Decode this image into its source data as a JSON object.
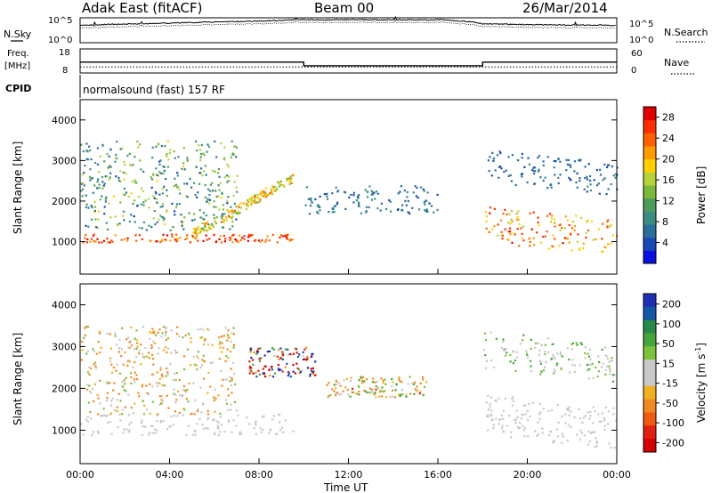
{
  "header": {
    "station": "Adak East (fitACF)",
    "beam": "Beam 00",
    "date": "26/Mar/2014"
  },
  "top_panels": {
    "nsky_label": "N.Sky",
    "nsearch_label": "N.Search",
    "noise_ticks": [
      "10^5",
      "10^0"
    ],
    "freq_label_1": "Freq.",
    "freq_label_2": "[MHz]",
    "freq_ticks": [
      "18",
      "8"
    ],
    "nave_label": "Nave",
    "nave_ticks": [
      "60",
      "0"
    ],
    "cpid_label": "CPID",
    "cpid_text": "normalsound (fast) 157 RF"
  },
  "colors": {
    "power_scale": [
      "#0a10e0",
      "#1848b4",
      "#2a6e9a",
      "#3c8c84",
      "#4c9c5c",
      "#7cb83c",
      "#b6d23a",
      "#ffd000",
      "#ff9a00",
      "#ff6000",
      "#ff3000",
      "#e00000"
    ],
    "velocity_scale": [
      "#1f2fb4",
      "#1656a8",
      "#278a4a",
      "#46a63c",
      "#7cc23c",
      "#c8c8c8",
      "#c8c8c8",
      "#f0b020",
      "#f08a20",
      "#f05a10",
      "#e02010",
      "#d40000"
    ]
  },
  "chart_data": [
    {
      "type": "line",
      "title": "N.Sky / N.Search",
      "xlabel": "",
      "ylabel": "N.Sky",
      "ylim": [
        "10^0",
        "10^5"
      ],
      "y_scale": "log",
      "series": [
        {
          "name": "N.Sky",
          "x": [
            "00:00",
            "04:00",
            "08:00",
            "10:00",
            "12:00",
            "16:00",
            "18:00",
            "20:00",
            "00:00"
          ],
          "values": [
            3000,
            8000,
            20000,
            40000,
            40000,
            40000,
            6000,
            4000,
            3000
          ]
        }
      ]
    },
    {
      "type": "line",
      "title": "Freq. / Nave",
      "ylabel": "Freq. [MHz]",
      "ylim": [
        8,
        18
      ],
      "y2label": "Nave",
      "y2lim": [
        0,
        60
      ],
      "series": [
        {
          "name": "Freq.",
          "x": [
            "00:00",
            "10:00",
            "10:00",
            "18:00",
            "18:00",
            "00:00"
          ],
          "values": [
            12.5,
            12.5,
            11.0,
            11.0,
            12.5,
            12.5
          ]
        },
        {
          "name": "Nave",
          "x": [
            "00:00",
            "00:00"
          ],
          "values": [
            15,
            15
          ]
        }
      ]
    },
    {
      "type": "heatmap",
      "title": "Power",
      "xlabel": "",
      "ylabel": "Slant Range [km]",
      "x_ticks": [
        "00:00",
        "04:00",
        "08:00",
        "12:00",
        "16:00",
        "20:00",
        "00:00"
      ],
      "y_ticks": [
        1000,
        2000,
        3000,
        4000
      ],
      "ylim": [
        200,
        4500
      ],
      "colorbar": {
        "label": "Power [dB]",
        "ticks": [
          4,
          8,
          12,
          16,
          20,
          24,
          28
        ],
        "range": [
          0,
          30
        ]
      },
      "features": [
        {
          "name": "near-range band",
          "time": [
            "00:00",
            "09:30"
          ],
          "range_km": [
            1000,
            1200
          ],
          "power_db": [
            20,
            30
          ]
        },
        {
          "name": "scatter cloud",
          "time": [
            "00:00",
            "07:00"
          ],
          "range_km": [
            1300,
            3500
          ],
          "power_db": [
            4,
            18
          ]
        },
        {
          "name": "rising band",
          "time": [
            "05:00",
            "09:30"
          ],
          "range_km": [
            1200,
            2600
          ],
          "power_db": [
            12,
            24
          ]
        },
        {
          "name": "mid-day patch",
          "time": [
            "10:00",
            "16:00"
          ],
          "range_km": [
            1700,
            2400
          ],
          "power_db": [
            4,
            10
          ]
        },
        {
          "name": "evening band",
          "time": [
            "18:00",
            "00:00"
          ],
          "range_km": [
            1000,
            1900
          ],
          "power_db": [
            16,
            28
          ]
        },
        {
          "name": "evening upper band",
          "time": [
            "18:00",
            "00:00"
          ],
          "range_km": [
            2500,
            3300
          ],
          "power_db": [
            4,
            8
          ]
        }
      ]
    },
    {
      "type": "heatmap",
      "title": "Velocity",
      "xlabel": "Time UT",
      "ylabel": "Slant Range [km]",
      "x_ticks": [
        "00:00",
        "04:00",
        "08:00",
        "12:00",
        "16:00",
        "20:00",
        "00:00"
      ],
      "y_ticks": [
        1000,
        2000,
        3000,
        4000
      ],
      "ylim": [
        200,
        4500
      ],
      "colorbar": {
        "label": "Velocity [m s-1]",
        "ticks": [
          200,
          100,
          50,
          15,
          -15,
          -50,
          -100,
          -200
        ],
        "range": [
          -250,
          250
        ]
      },
      "features": [
        {
          "name": "ground scatter",
          "time": [
            "00:00",
            "09:30"
          ],
          "range_km": [
            900,
            1400
          ],
          "velocity": [
            -15,
            15
          ]
        },
        {
          "name": "scatter cloud",
          "time": [
            "00:00",
            "07:00"
          ],
          "range_km": [
            1400,
            3500
          ],
          "velocity": [
            -60,
            30
          ]
        },
        {
          "name": "flow patch",
          "time": [
            "07:30",
            "10:30"
          ],
          "range_km": [
            2300,
            3000
          ],
          "velocity": [
            -250,
            200
          ]
        },
        {
          "name": "mid-day patch",
          "time": [
            "11:00",
            "15:30"
          ],
          "range_km": [
            1800,
            2300
          ],
          "velocity": [
            -80,
            60
          ]
        },
        {
          "name": "evening band",
          "time": [
            "18:00",
            "00:00"
          ],
          "range_km": [
            900,
            1900
          ],
          "velocity": [
            -15,
            15
          ]
        },
        {
          "name": "evening upper band",
          "time": [
            "18:00",
            "00:00"
          ],
          "range_km": [
            2500,
            3400
          ],
          "velocity": [
            -15,
            50
          ]
        }
      ]
    }
  ],
  "axes": {
    "x_ticks": [
      "00:00",
      "04:00",
      "08:00",
      "12:00",
      "16:00",
      "20:00",
      "00:00"
    ],
    "x_label": "Time UT",
    "y_label": "Slant Range [km]",
    "y_ticks": [
      "1000",
      "2000",
      "3000",
      "4000"
    ],
    "power_label": "Power [dB]",
    "power_ticks": [
      "4",
      "8",
      "12",
      "16",
      "20",
      "24",
      "28"
    ],
    "velocity_label_main": "Velocity [m s",
    "velocity_label_sup": "-1",
    "velocity_label_end": "]",
    "velocity_ticks": [
      "200",
      "100",
      "50",
      "15",
      "-15",
      "-50",
      "-100",
      "-200"
    ]
  }
}
